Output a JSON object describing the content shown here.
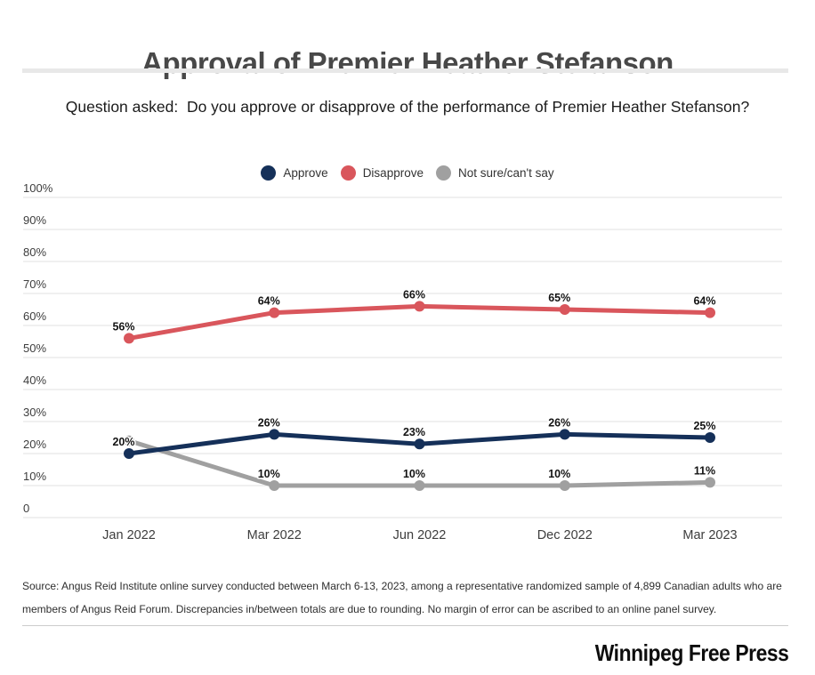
{
  "title": "Approval of Premier Heather Stefanson",
  "question": "Question asked:  Do you approve or disapprove of the performance of Premier Heather Stefanson?",
  "legend": [
    {
      "label": "Approve",
      "color": "#153059"
    },
    {
      "label": "Disapprove",
      "color": "#d9565c"
    },
    {
      "label": "Not sure/can't say",
      "color": "#a0a0a0"
    }
  ],
  "chart_data": {
    "type": "line",
    "title": "Approval of Premier Heather Stefanson",
    "categories": [
      "Jan 2022",
      "Mar 2022",
      "Jun 2022",
      "Dec 2022",
      "Mar 2023"
    ],
    "series": [
      {
        "name": "Approve",
        "color": "#153059",
        "values": [
          20,
          26,
          23,
          26,
          25
        ],
        "labels": [
          "20%",
          "26%",
          "23%",
          "26%",
          "25%"
        ]
      },
      {
        "name": "Disapprove",
        "color": "#d9565c",
        "values": [
          56,
          64,
          66,
          65,
          64
        ],
        "labels": [
          "56%",
          "64%",
          "66%",
          "65%",
          "64%"
        ]
      },
      {
        "name": "Not sure/can't say",
        "color": "#a0a0a0",
        "values": [
          24,
          10,
          10,
          10,
          11
        ],
        "labels": [
          "",
          "10%",
          "10%",
          "10%",
          "11%"
        ]
      }
    ],
    "y_ticks": [
      "100%",
      "90%",
      "80%",
      "70%",
      "60%",
      "50%",
      "40%",
      "30%",
      "20%",
      "10%",
      "0"
    ],
    "ylim": [
      0,
      100
    ],
    "grid": "on",
    "legend_position": "top-center"
  },
  "source": "Source: Angus Reid Institute online survey conducted between March 6-13, 2023, among a representative randomized sample of 4,899 Canadian adults who are members of Angus Reid Forum. Discrepancies in/between totals are due to rounding. No margin of error can be ascribed to an online panel survey.",
  "branding": "Winnipeg Free Press"
}
